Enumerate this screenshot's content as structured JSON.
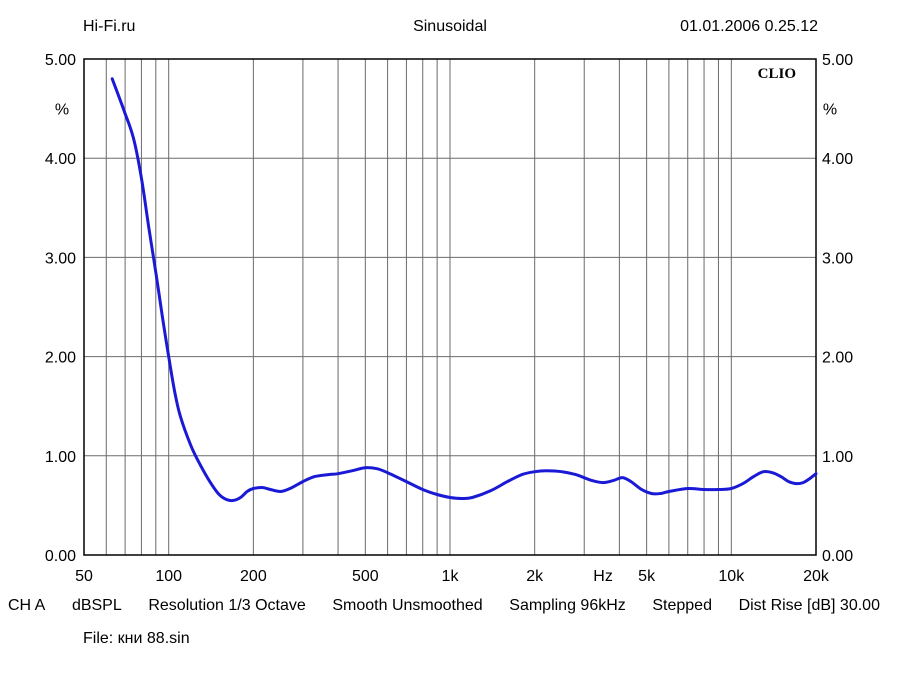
{
  "header": {
    "left": "Hi-Fi.ru",
    "center": "Sinusoidal",
    "right": "01.01.2006 0.25.12"
  },
  "brand": "CLIO",
  "status_items": [
    "CH A",
    "dBSPL",
    "Resolution 1/3 Octave",
    "Smooth Unsmoothed",
    "Sampling 96kHz",
    "Stepped",
    "Dist Rise [dB] 30.00"
  ],
  "file_line": "File: кни 88.sin",
  "chart_data": {
    "type": "line",
    "title": "Sinusoidal",
    "x_scale": "log",
    "xlim": [
      50,
      20000
    ],
    "ylim": [
      0,
      5
    ],
    "x_ticks": [
      {
        "value": 50,
        "label": "50"
      },
      {
        "value": 100,
        "label": "100"
      },
      {
        "value": 200,
        "label": "200"
      },
      {
        "value": 500,
        "label": "500"
      },
      {
        "value": 1000,
        "label": "1k"
      },
      {
        "value": 2000,
        "label": "2k"
      },
      {
        "value": 3500,
        "label": "Hz"
      },
      {
        "value": 5000,
        "label": "5k"
      },
      {
        "value": 10000,
        "label": "10k"
      },
      {
        "value": 20000,
        "label": "20k"
      }
    ],
    "y_ticks": [
      {
        "value": 0,
        "label": "0.00"
      },
      {
        "value": 1,
        "label": "1.00"
      },
      {
        "value": 2,
        "label": "2.00"
      },
      {
        "value": 3,
        "label": "3.00"
      },
      {
        "value": 4,
        "label": "4.00"
      },
      {
        "value": 5,
        "label": "5.00"
      }
    ],
    "y_unit_label": "%",
    "grid": true,
    "series": [
      {
        "color": "#1a1ad6",
        "points": [
          [
            63,
            4.8
          ],
          [
            70,
            4.45
          ],
          [
            75,
            4.2
          ],
          [
            80,
            3.8
          ],
          [
            85,
            3.3
          ],
          [
            90,
            2.85
          ],
          [
            95,
            2.4
          ],
          [
            100,
            2.0
          ],
          [
            105,
            1.65
          ],
          [
            110,
            1.4
          ],
          [
            120,
            1.1
          ],
          [
            130,
            0.9
          ],
          [
            140,
            0.74
          ],
          [
            150,
            0.62
          ],
          [
            160,
            0.56
          ],
          [
            170,
            0.55
          ],
          [
            180,
            0.58
          ],
          [
            190,
            0.64
          ],
          [
            200,
            0.67
          ],
          [
            215,
            0.68
          ],
          [
            230,
            0.66
          ],
          [
            250,
            0.64
          ],
          [
            270,
            0.67
          ],
          [
            300,
            0.74
          ],
          [
            330,
            0.79
          ],
          [
            370,
            0.81
          ],
          [
            400,
            0.82
          ],
          [
            450,
            0.85
          ],
          [
            500,
            0.88
          ],
          [
            550,
            0.87
          ],
          [
            600,
            0.83
          ],
          [
            700,
            0.74
          ],
          [
            800,
            0.66
          ],
          [
            900,
            0.61
          ],
          [
            1000,
            0.58
          ],
          [
            1100,
            0.57
          ],
          [
            1200,
            0.58
          ],
          [
            1400,
            0.65
          ],
          [
            1600,
            0.74
          ],
          [
            1800,
            0.81
          ],
          [
            2000,
            0.84
          ],
          [
            2200,
            0.85
          ],
          [
            2500,
            0.84
          ],
          [
            2800,
            0.81
          ],
          [
            3200,
            0.75
          ],
          [
            3500,
            0.73
          ],
          [
            3800,
            0.75
          ],
          [
            4100,
            0.78
          ],
          [
            4400,
            0.74
          ],
          [
            4800,
            0.66
          ],
          [
            5200,
            0.62
          ],
          [
            5600,
            0.62
          ],
          [
            6000,
            0.64
          ],
          [
            7000,
            0.67
          ],
          [
            8000,
            0.66
          ],
          [
            9000,
            0.66
          ],
          [
            10000,
            0.67
          ],
          [
            11000,
            0.72
          ],
          [
            12000,
            0.79
          ],
          [
            13000,
            0.84
          ],
          [
            14000,
            0.83
          ],
          [
            15000,
            0.79
          ],
          [
            16000,
            0.74
          ],
          [
            17000,
            0.72
          ],
          [
            18000,
            0.73
          ],
          [
            19000,
            0.77
          ],
          [
            20000,
            0.82
          ]
        ]
      }
    ]
  }
}
